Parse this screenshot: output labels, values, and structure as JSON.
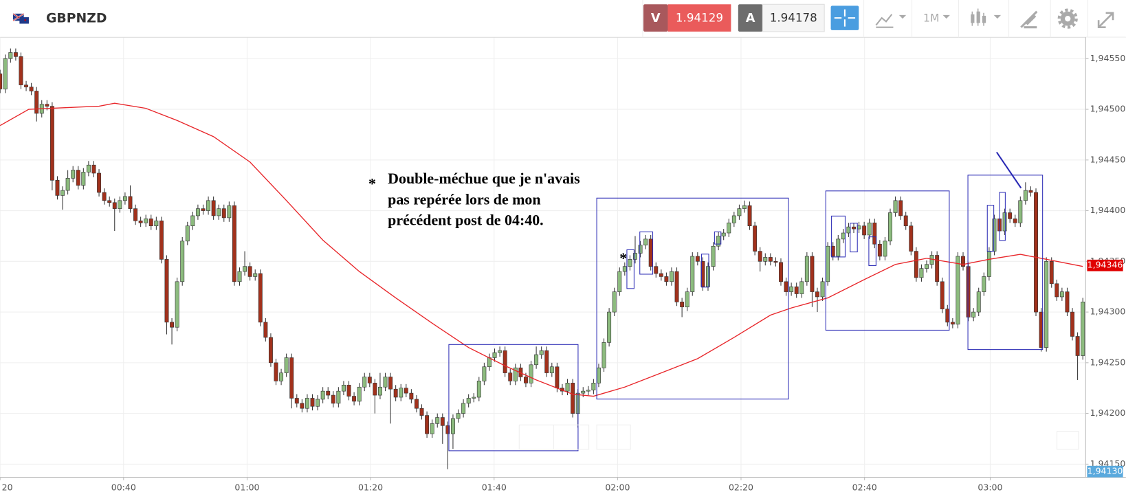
{
  "header": {
    "symbol": "GBPNZD",
    "sell_label": "V",
    "sell_price": "1.94129",
    "buy_label": "A",
    "buy_price": "1.94178",
    "timeframe": "1M"
  },
  "chart_data": {
    "type": "candlestick",
    "open": [
      1.94535,
      1.9452,
      1.9455,
      1.94556,
      1.94552,
      1.94524,
      1.94522,
      1.94518,
      1.94496,
      1.94505,
      1.94503,
      1.9443,
      1.94415,
      1.9442,
      1.94432,
      1.9444,
      1.94425,
      1.94438,
      1.94445,
      1.94437,
      1.94418,
      1.9441,
      1.94408,
      1.94402,
      1.9441,
      1.94414,
      1.94402,
      1.9439,
      1.94388,
      1.94392,
      1.94385,
      1.9439,
      1.94352,
      1.9429,
      1.94285,
      1.9433,
      1.9437,
      1.94385,
      1.94395,
      1.94402,
      1.944,
      1.9441,
      1.94395,
      1.94402,
      1.94393,
      1.94405,
      1.9433,
      1.9434,
      1.94345,
      1.94335,
      1.94338,
      1.9429,
      1.94275,
      1.9425,
      1.94232,
      1.9424,
      1.94255,
      1.94215,
      1.9421,
      1.94205,
      1.94215,
      1.94207,
      1.94214,
      1.94222,
      1.94218,
      1.9421,
      1.94222,
      1.94228,
      1.94217,
      1.94212,
      1.94226,
      1.94236,
      1.9423,
      1.94218,
      1.94226,
      1.94236,
      1.94224,
      1.94216,
      1.94225,
      1.9422,
      1.94214,
      1.94205,
      1.94198,
      1.9418,
      1.9419,
      1.94196,
      1.94188,
      1.9418,
      1.94195,
      1.942,
      1.9421,
      1.94215,
      1.94216,
      1.94232,
      1.94246,
      1.94255,
      1.9426,
      1.94262,
      1.9424,
      1.94232,
      1.94245,
      1.94236,
      1.9423,
      1.94248,
      1.94258,
      1.94262,
      1.9424,
      1.94246,
      1.94225,
      1.94222,
      1.9423,
      1.942,
      1.9422,
      1.94222,
      1.94223,
      1.9423,
      1.94245,
      1.9427,
      1.943,
      1.9432,
      1.9434,
      1.94345,
      1.94352,
      1.94358,
      1.94366,
      1.94372,
      1.94345,
      1.94338,
      1.94335,
      1.9433,
      1.9434,
      1.9431,
      1.94305,
      1.9432,
      1.94355,
      1.9435,
      1.94325,
      1.94345,
      1.94365,
      1.94375,
      1.94378,
      1.94388,
      1.94395,
      1.94402,
      1.94405,
      1.94385,
      1.9436,
      1.9435,
      1.94354,
      1.9435,
      1.94349,
      1.9433,
      1.9432,
      1.94325,
      1.94318,
      1.9433,
      1.94355,
      1.9432,
      1.94315,
      1.9433,
      1.94365,
      1.94355,
      1.94372,
      1.94378,
      1.94384,
      1.94382,
      1.94385,
      1.94376,
      1.94388,
      1.94367,
      1.94355,
      1.9437,
      1.94398,
      1.9441,
      1.94395,
      1.94385,
      1.9436,
      1.94334,
      1.94343,
      1.94347,
      1.94356,
      1.9433,
      1.94303,
      1.9429,
      1.94288,
      1.94355,
      1.94345,
      1.94295,
      1.943,
      1.9432,
      1.94335,
      1.9436,
      1.94392,
      1.9438,
      1.94398,
      1.94392,
      1.94388,
      1.9441,
      1.9442,
      1.94418,
      1.943,
      1.94265,
      1.9435,
      1.94328,
      1.94315,
      1.9432,
      1.943,
      1.94276,
      1.94257
    ],
    "high": [
      1.94539,
      1.94554,
      1.9456,
      1.9456,
      1.94556,
      1.94528,
      1.94526,
      1.94522,
      1.94509,
      1.94509,
      1.94507,
      1.94434,
      1.94424,
      1.9444,
      1.94444,
      1.94444,
      1.94442,
      1.94449,
      1.94449,
      1.94441,
      1.94422,
      1.94414,
      1.94412,
      1.94414,
      1.94418,
      1.94425,
      1.94406,
      1.94394,
      1.94396,
      1.94396,
      1.94394,
      1.94394,
      1.94356,
      1.94294,
      1.94334,
      1.94374,
      1.94389,
      1.94399,
      1.94406,
      1.94406,
      1.94414,
      1.94414,
      1.94406,
      1.94406,
      1.94409,
      1.94409,
      1.94344,
      1.9436,
      1.94349,
      1.94342,
      1.94342,
      1.94294,
      1.94279,
      1.94254,
      1.94244,
      1.94259,
      1.94259,
      1.94219,
      1.94214,
      1.94219,
      1.94219,
      1.94218,
      1.94226,
      1.94226,
      1.94222,
      1.94226,
      1.94232,
      1.94232,
      1.94221,
      1.9423,
      1.9424,
      1.9424,
      1.94234,
      1.9424,
      1.9424,
      1.9424,
      1.94228,
      1.94229,
      1.94229,
      1.94224,
      1.94218,
      1.94209,
      1.94202,
      1.94194,
      1.942,
      1.942,
      1.94192,
      1.94199,
      1.94204,
      1.94214,
      1.94219,
      1.9422,
      1.94236,
      1.9425,
      1.94259,
      1.94264,
      1.94266,
      1.94266,
      1.94244,
      1.94249,
      1.94249,
      1.9424,
      1.94252,
      1.94266,
      1.94266,
      1.94266,
      1.9425,
      1.9425,
      1.94229,
      1.94234,
      1.94234,
      1.94224,
      1.94226,
      1.94227,
      1.94234,
      1.94249,
      1.94274,
      1.94304,
      1.94324,
      1.94344,
      1.94349,
      1.94356,
      1.94375,
      1.9437,
      1.94376,
      1.94376,
      1.94349,
      1.94342,
      1.94339,
      1.94344,
      1.94344,
      1.94314,
      1.94324,
      1.94359,
      1.94359,
      1.94354,
      1.94349,
      1.94369,
      1.94379,
      1.94382,
      1.94392,
      1.94399,
      1.94406,
      1.9441,
      1.94409,
      1.94389,
      1.94364,
      1.94358,
      1.94358,
      1.94354,
      1.94353,
      1.94334,
      1.94329,
      1.94329,
      1.94334,
      1.94359,
      1.94359,
      1.94324,
      1.94334,
      1.94369,
      1.94369,
      1.94376,
      1.94382,
      1.94388,
      1.94388,
      1.94389,
      1.94389,
      1.94392,
      1.94392,
      1.94371,
      1.94374,
      1.94402,
      1.94414,
      1.94414,
      1.94399,
      1.94389,
      1.94364,
      1.94347,
      1.94351,
      1.9436,
      1.9436,
      1.94334,
      1.94307,
      1.94294,
      1.94359,
      1.94359,
      1.94349,
      1.94304,
      1.94324,
      1.94339,
      1.94364,
      1.94396,
      1.94396,
      1.94402,
      1.94402,
      1.94396,
      1.94414,
      1.94428,
      1.94424,
      1.94422,
      1.94304,
      1.94354,
      1.94354,
      1.94332,
      1.94324,
      1.94324,
      1.94304,
      1.9428,
      1.94314
    ],
    "low": [
      1.94516,
      1.94516,
      1.94546,
      1.94548,
      1.9452,
      1.94518,
      1.94514,
      1.94488,
      1.94492,
      1.94499,
      1.9442,
      1.94411,
      1.94401,
      1.94416,
      1.94428,
      1.94421,
      1.94421,
      1.94434,
      1.94433,
      1.94414,
      1.94406,
      1.94404,
      1.9438,
      1.94398,
      1.94406,
      1.94398,
      1.94386,
      1.94384,
      1.94384,
      1.94381,
      1.94381,
      1.94348,
      1.94278,
      1.94268,
      1.94281,
      1.94326,
      1.94366,
      1.94381,
      1.94391,
      1.94396,
      1.94396,
      1.94391,
      1.94391,
      1.94389,
      1.94389,
      1.94326,
      1.94326,
      1.94336,
      1.94331,
      1.94331,
      1.94286,
      1.94271,
      1.94246,
      1.94228,
      1.94228,
      1.94236,
      1.94205,
      1.94206,
      1.94201,
      1.94201,
      1.94203,
      1.94203,
      1.9421,
      1.94214,
      1.94206,
      1.94206,
      1.94218,
      1.94213,
      1.94208,
      1.94208,
      1.94222,
      1.94226,
      1.942,
      1.94214,
      1.94222,
      1.9419,
      1.94212,
      1.94212,
      1.94216,
      1.9421,
      1.94201,
      1.94194,
      1.94176,
      1.94176,
      1.94186,
      1.9417,
      1.94145,
      1.94165,
      1.94191,
      1.94196,
      1.94206,
      1.94211,
      1.94212,
      1.94228,
      1.94242,
      1.94251,
      1.94256,
      1.94236,
      1.94228,
      1.94228,
      1.94232,
      1.94226,
      1.94226,
      1.94244,
      1.94254,
      1.94236,
      1.94236,
      1.94221,
      1.94218,
      1.94218,
      1.94196,
      1.94186,
      1.94216,
      1.94218,
      1.94219,
      1.94226,
      1.94241,
      1.94266,
      1.94296,
      1.94316,
      1.94336,
      1.94341,
      1.94348,
      1.94354,
      1.94362,
      1.94341,
      1.94334,
      1.94331,
      1.94326,
      1.94326,
      1.94306,
      1.94295,
      1.94301,
      1.94316,
      1.94346,
      1.94321,
      1.94321,
      1.94341,
      1.94361,
      1.94371,
      1.94374,
      1.94384,
      1.94391,
      1.94398,
      1.94381,
      1.94356,
      1.9434,
      1.94346,
      1.94346,
      1.94345,
      1.94326,
      1.94316,
      1.94316,
      1.94314,
      1.94314,
      1.94326,
      1.94305,
      1.943,
      1.94311,
      1.94326,
      1.94351,
      1.94351,
      1.94368,
      1.94374,
      1.94378,
      1.94378,
      1.94372,
      1.94372,
      1.94363,
      1.94351,
      1.94351,
      1.94366,
      1.94394,
      1.94391,
      1.94381,
      1.94356,
      1.9433,
      1.9433,
      1.94339,
      1.94343,
      1.94326,
      1.94299,
      1.94286,
      1.94284,
      1.94284,
      1.94341,
      1.94291,
      1.94291,
      1.94296,
      1.94316,
      1.94331,
      1.94356,
      1.94376,
      1.94376,
      1.94388,
      1.94384,
      1.94384,
      1.94406,
      1.94414,
      1.94296,
      1.94261,
      1.94261,
      1.94324,
      1.94311,
      1.94311,
      1.94296,
      1.94272,
      1.94233,
      1.94253
    ],
    "close": [
      1.9452,
      1.9455,
      1.94556,
      1.94552,
      1.94524,
      1.94522,
      1.94518,
      1.94496,
      1.94505,
      1.94503,
      1.9443,
      1.94415,
      1.9442,
      1.94432,
      1.9444,
      1.94425,
      1.94438,
      1.94445,
      1.94437,
      1.94418,
      1.9441,
      1.94408,
      1.94402,
      1.9441,
      1.94414,
      1.94402,
      1.9439,
      1.94388,
      1.94392,
      1.94385,
      1.9439,
      1.94352,
      1.9429,
      1.94285,
      1.9433,
      1.9437,
      1.94385,
      1.94395,
      1.94402,
      1.944,
      1.9441,
      1.94395,
      1.94402,
      1.94393,
      1.94405,
      1.9433,
      1.9434,
      1.94345,
      1.94335,
      1.94338,
      1.9429,
      1.94275,
      1.9425,
      1.94232,
      1.9424,
      1.94255,
      1.94215,
      1.9421,
      1.94205,
      1.94215,
      1.94207,
      1.94214,
      1.94222,
      1.94218,
      1.9421,
      1.94222,
      1.94228,
      1.94217,
      1.94212,
      1.94226,
      1.94236,
      1.9423,
      1.94218,
      1.94226,
      1.94236,
      1.94224,
      1.94216,
      1.94225,
      1.9422,
      1.94214,
      1.94205,
      1.94198,
      1.9418,
      1.9419,
      1.94196,
      1.94188,
      1.9418,
      1.94195,
      1.942,
      1.9421,
      1.94215,
      1.94216,
      1.94232,
      1.94246,
      1.94255,
      1.9426,
      1.94262,
      1.9424,
      1.94232,
      1.94245,
      1.94236,
      1.9423,
      1.94248,
      1.94258,
      1.94262,
      1.9424,
      1.94246,
      1.94225,
      1.94222,
      1.9423,
      1.942,
      1.9422,
      1.94222,
      1.94223,
      1.9423,
      1.94245,
      1.9427,
      1.943,
      1.9432,
      1.9434,
      1.94345,
      1.94352,
      1.94358,
      1.94366,
      1.94372,
      1.94345,
      1.94338,
      1.94335,
      1.9433,
      1.9434,
      1.9431,
      1.94305,
      1.9432,
      1.94355,
      1.9435,
      1.94325,
      1.94345,
      1.94365,
      1.94375,
      1.94378,
      1.94388,
      1.94395,
      1.94402,
      1.94405,
      1.94385,
      1.9436,
      1.9435,
      1.94354,
      1.9435,
      1.94349,
      1.9433,
      1.9432,
      1.94325,
      1.94318,
      1.9433,
      1.94355,
      1.9432,
      1.94315,
      1.9433,
      1.94365,
      1.94355,
      1.94372,
      1.94378,
      1.94384,
      1.94382,
      1.94385,
      1.94376,
      1.94388,
      1.94367,
      1.94355,
      1.9437,
      1.94398,
      1.9441,
      1.94395,
      1.94385,
      1.9436,
      1.94334,
      1.94343,
      1.94347,
      1.94356,
      1.9433,
      1.94303,
      1.9429,
      1.94288,
      1.94355,
      1.94345,
      1.94295,
      1.943,
      1.9432,
      1.94335,
      1.9436,
      1.94392,
      1.9438,
      1.94398,
      1.94392,
      1.94388,
      1.9441,
      1.9442,
      1.94418,
      1.943,
      1.94265,
      1.9435,
      1.94328,
      1.94315,
      1.9432,
      1.943,
      1.94276,
      1.94257,
      1.9431
    ],
    "up_color": "#8cbb7e",
    "down_color": "#a1311c",
    "ma": {
      "color": "#e8262a",
      "x": [
        0,
        5.5,
        14,
        19,
        22,
        28,
        34,
        41,
        48,
        55,
        62,
        69,
        76,
        83,
        90,
        97,
        103,
        110,
        114,
        120,
        127,
        134,
        141,
        148,
        152,
        159,
        166,
        172,
        178,
        185,
        190,
        196,
        201,
        208
      ],
      "values": [
        1.94484,
        1.945,
        1.94502,
        1.94503,
        1.94506,
        1.94501,
        1.94489,
        1.94473,
        1.94448,
        1.9441,
        1.94371,
        1.9434,
        1.94314,
        1.94289,
        1.94265,
        1.94247,
        1.94233,
        1.94219,
        1.94217,
        1.94226,
        1.9424,
        1.94254,
        1.94275,
        1.94297,
        1.94304,
        1.94314,
        1.94332,
        1.94347,
        1.94353,
        1.94347,
        1.94352,
        1.94357,
        1.94352,
        1.94345
      ]
    },
    "xlim": [
      0,
      208.55
    ],
    "xticks": [
      {
        "value": 0,
        "label": "20"
      },
      {
        "value": 23.72,
        "label": "00:40"
      },
      {
        "value": 47.45,
        "label": "01:00"
      },
      {
        "value": 71.17,
        "label": "01:20"
      },
      {
        "value": 94.9,
        "label": "01:40"
      },
      {
        "value": 118.62,
        "label": "02:00"
      },
      {
        "value": 142.34,
        "label": "02:20"
      },
      {
        "value": 166.07,
        "label": "02:40"
      },
      {
        "value": 190.21,
        "label": "03:00"
      }
    ],
    "ylim": [
      1.94137,
      1.94571
    ],
    "yticks": [
      {
        "value": 1.9415,
        "label": "1,94150"
      },
      {
        "value": 1.942,
        "label": "1,94200"
      },
      {
        "value": 1.9425,
        "label": "1,94250"
      },
      {
        "value": 1.943,
        "label": "1,94300"
      },
      {
        "value": 1.9435,
        "label": "1,94350"
      },
      {
        "value": 1.944,
        "label": "1,94400"
      },
      {
        "value": 1.9445,
        "label": "1,94450"
      },
      {
        "value": 1.945,
        "label": "1,94500"
      },
      {
        "value": 1.9455,
        "label": "1,94550"
      }
    ],
    "grid": true,
    "last_price": {
      "value": 1.94346,
      "label": "1,94346",
      "color": "#e00000"
    },
    "bid_price": {
      "value": 1.9413,
      "label": "1,94130",
      "color": "#5aa9dd"
    },
    "annotation": {
      "marker": "*",
      "lines": [
        "Double-méchue que je n'avais",
        "pas  repérée lors de mon",
        "précédent post de  04:40."
      ]
    },
    "marker2": "*"
  }
}
